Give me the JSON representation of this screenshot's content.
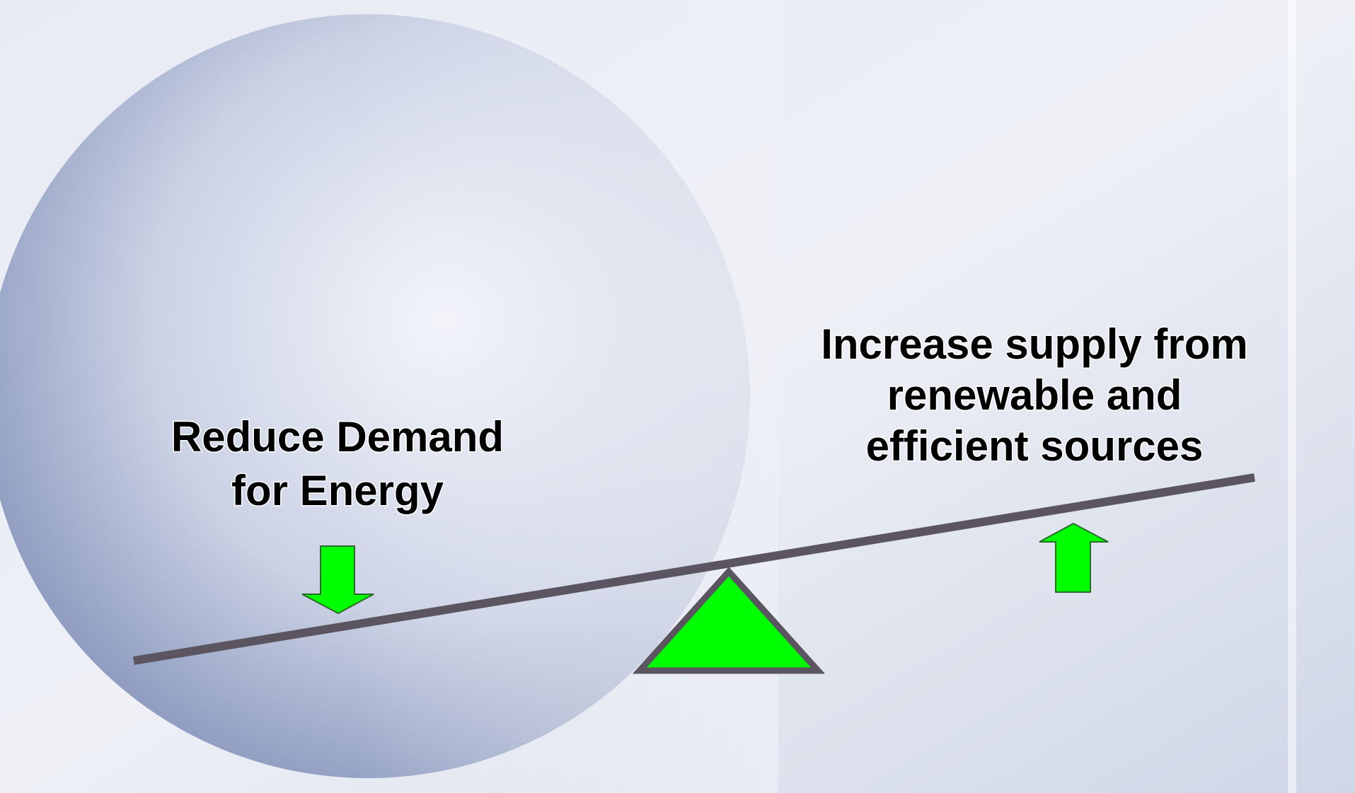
{
  "left_label": {
    "lines": [
      "Reduce Demand",
      "for Energy"
    ]
  },
  "right_label": {
    "lines": [
      "Increase supply from",
      "renewable and",
      "efficient sources"
    ]
  }
}
